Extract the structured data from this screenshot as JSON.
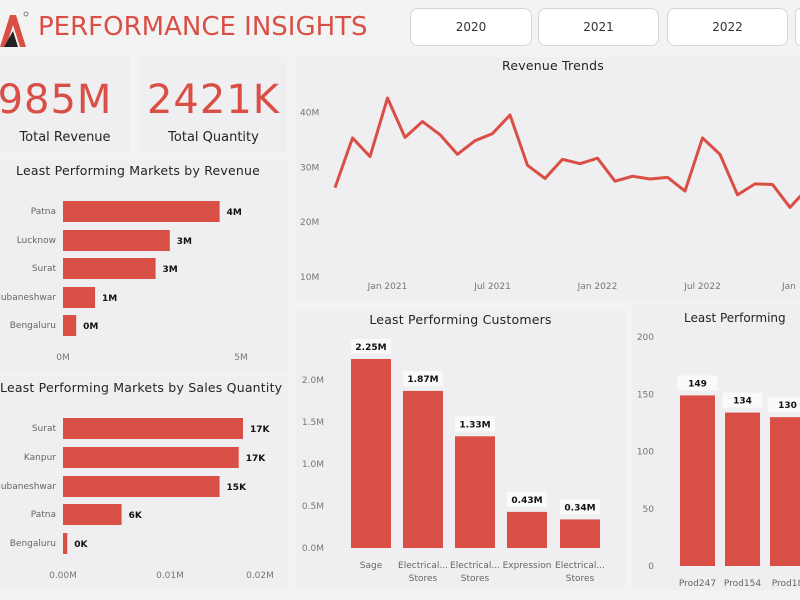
{
  "header": {
    "title": "PERFORMANCE INSIGHTS",
    "logo": "triangle-a-logo"
  },
  "year_filters": [
    "2020",
    "2021",
    "2022"
  ],
  "kpis": [
    {
      "value": "985M",
      "label": "Total Revenue"
    },
    {
      "value": "2421K",
      "label": "Total Quantity"
    }
  ],
  "colors": {
    "accent": "#d94f45",
    "panel": "#efeef0",
    "background": "#f4f3f4"
  },
  "chart_data": [
    {
      "id": "revenue_trends",
      "type": "line",
      "title": "Revenue Trends",
      "x": [
        "Oct 2020",
        "Nov 2020",
        "Dec 2020",
        "Jan 2021",
        "Feb 2021",
        "Mar 2021",
        "Apr 2021",
        "May 2021",
        "Jun 2021",
        "Jul 2021",
        "Aug 2021",
        "Sep 2021",
        "Oct 2021",
        "Nov 2021",
        "Dec 2021",
        "Jan 2022",
        "Feb 2022",
        "Mar 2022",
        "Apr 2022",
        "May 2022",
        "Jun 2022",
        "Jul 2022",
        "Aug 2022",
        "Sep 2022",
        "Oct 2022",
        "Nov 2022",
        "Dec 2022",
        "Jan 2023"
      ],
      "values": [
        26.1,
        35.2,
        31.8,
        42.5,
        35.3,
        38.2,
        35.8,
        32.2,
        34.7,
        36.0,
        39.4,
        30.2,
        27.8,
        31.3,
        30.5,
        31.5,
        27.3,
        28.2,
        27.7,
        28.0,
        25.5,
        35.2,
        32.2,
        24.8,
        26.8,
        26.7,
        22.5,
        26.0
      ],
      "unit": "M",
      "x_tick_labels": [
        "Jan 2021",
        "Jul 2021",
        "Jan 2022",
        "Jul 2022",
        "Jan"
      ],
      "y_tick_labels": [
        "40M",
        "30M",
        "20M",
        "10M"
      ],
      "ylim": [
        10,
        40
      ],
      "grid": false
    },
    {
      "id": "markets_revenue",
      "type": "bar",
      "orientation": "horizontal",
      "title": "Least Performing Markets by Revenue",
      "categories": [
        "Patna",
        "Lucknow",
        "Surat",
        "Bhubaneshwar",
        "Bengaluru"
      ],
      "values": [
        4.4,
        3.0,
        2.6,
        0.9,
        0.37
      ],
      "data_labels": [
        "4M",
        "3M",
        "3M",
        "1M",
        "0M"
      ],
      "x_tick_labels": [
        "0M",
        "5M"
      ],
      "xlim": [
        0,
        5
      ]
    },
    {
      "id": "markets_quantity",
      "type": "bar",
      "orientation": "horizontal",
      "title": "Least Performing Markets by Sales Quantity",
      "categories": [
        "Surat",
        "Kanpur",
        "Bhubaneshwar",
        "Patna",
        "Bengaluru"
      ],
      "values": [
        16.9,
        16.5,
        14.7,
        5.5,
        0.4
      ],
      "data_labels": [
        "17K",
        "17K",
        "15K",
        "6K",
        "0K"
      ],
      "x_tick_labels": [
        "0.00M",
        "0.01M",
        "0.02M"
      ],
      "xlim": [
        0,
        20
      ]
    },
    {
      "id": "customers",
      "type": "bar",
      "title": "Least Performing Customers",
      "categories": [
        [
          "Sage"
        ],
        [
          "Electrical...",
          "Stores"
        ],
        [
          "Electrical...",
          "Stores"
        ],
        [
          "Expression"
        ],
        [
          "Electrical...",
          "Stores"
        ]
      ],
      "values": [
        2.25,
        1.87,
        1.33,
        0.43,
        0.34
      ],
      "data_labels": [
        "2.25M",
        "1.87M",
        "1.33M",
        "0.43M",
        "0.34M"
      ],
      "y_tick_labels": [
        "2.0M",
        "1.5M",
        "1.0M",
        "0.5M",
        "0.0M"
      ],
      "ylim": [
        0,
        2.0
      ]
    },
    {
      "id": "products",
      "type": "bar",
      "title": "Least Performing",
      "categories": [
        "Prod247",
        "Prod154",
        "Prod18"
      ],
      "values": [
        149,
        134,
        130
      ],
      "data_labels": [
        "149",
        "134",
        "130"
      ],
      "y_tick_labels": [
        "200",
        "150",
        "100",
        "50",
        "0"
      ],
      "ylim": [
        0,
        200
      ]
    }
  ]
}
